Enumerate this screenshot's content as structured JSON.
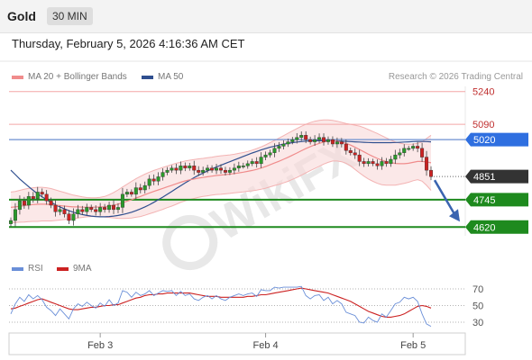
{
  "header": {
    "symbol": "Gold",
    "timeframe": "30 MIN",
    "datetime": "Thursday, February 5, 2026 4:16:36 AM CET"
  },
  "legend": {
    "ma20_label": "MA 20 + Bollinger Bands",
    "ma50_label": "MA 50",
    "credit": "Research © 2026 Trading Central",
    "rsi_label": "RSI",
    "rsi_ma_label": "9MA"
  },
  "watermark": "WikiFX",
  "colors": {
    "up": "#2a9a2a",
    "down": "#cc2222",
    "ma20": "#f08c8c",
    "ma50": "#2f4f8f",
    "level_red": "#f4a6a6",
    "level_blue": "#6d8fd0",
    "badge_blue": "#2f6fe0",
    "badge_green": "#1e8a1e",
    "badge_dark": "#333333",
    "arrow": "#3a64b0",
    "rsi": "#6a8fd8",
    "rsi_ma": "#cc2222"
  },
  "chart_data": [
    {
      "type": "candlestick",
      "xlabels": [
        "Feb 3",
        "Feb 4",
        "Feb 5"
      ],
      "ylim": [
        4580,
        5280
      ],
      "levels": [
        {
          "value": 5240,
          "label": "5240",
          "style": "resistance"
        },
        {
          "value": 5090,
          "label": "5090",
          "style": "resistance"
        },
        {
          "value": 5020,
          "label": "5020",
          "style": "pivot"
        },
        {
          "value": 4851,
          "label": "4851",
          "style": "last"
        },
        {
          "value": 4745,
          "label": "4745",
          "style": "support"
        },
        {
          "value": 4620,
          "label": "4620",
          "style": "support"
        }
      ],
      "close": [
        4650,
        4700,
        4740,
        4720,
        4760,
        4750,
        4780,
        4770,
        4740,
        4720,
        4690,
        4700,
        4680,
        4650,
        4680,
        4700,
        4690,
        4710,
        4700,
        4690,
        4710,
        4700,
        4720,
        4700,
        4710,
        4770,
        4780,
        4770,
        4800,
        4790,
        4810,
        4840,
        4830,
        4850,
        4870,
        4880,
        4890,
        4880,
        4900,
        4890,
        4900,
        4880,
        4870,
        4880,
        4890,
        4880,
        4890,
        4880,
        4870,
        4880,
        4890,
        4900,
        4900,
        4910,
        4920,
        4910,
        4940,
        4950,
        4960,
        4980,
        4990,
        5000,
        5010,
        5020,
        5030,
        5040,
        5020,
        5010,
        5020,
        5030,
        5010,
        5020,
        5000,
        5010,
        5000,
        4970,
        4960,
        4950,
        4920,
        4910,
        4920,
        4910,
        4900,
        4920,
        4910,
        4930,
        4950,
        4960,
        4980,
        4980,
        4990,
        4980,
        4940,
        4880,
        4851
      ],
      "ma20": [
        4710,
        4712,
        4715,
        4718,
        4721,
        4723,
        4724,
        4725,
        4724,
        4722,
        4720,
        4718,
        4716,
        4714,
        4712,
        4712,
        4711,
        4711,
        4711,
        4711,
        4712,
        4713,
        4716,
        4720,
        4725,
        4731,
        4738,
        4745,
        4753,
        4760,
        4768,
        4776,
        4783,
        4790,
        4797,
        4804,
        4811,
        4818,
        4825,
        4831,
        4836,
        4840,
        4844,
        4847,
        4850,
        4853,
        4856,
        4858,
        4860,
        4862,
        4865,
        4868,
        4871,
        4875,
        4879,
        4884,
        4890,
        4897,
        4905,
        4913,
        4921,
        4930,
        4939,
        4949,
        4959,
        4969,
        4979,
        4988,
        4996,
        5003,
        5009,
        5013,
        5015,
        5013,
        5009,
        5003,
        4995,
        4985,
        4975,
        4964,
        4953,
        4943,
        4934,
        4926,
        4920,
        4915,
        4911,
        4910,
        4910,
        4912,
        4916,
        4920,
        4920,
        4918,
        4914
      ],
      "bb_upper": [
        4780,
        4783,
        4788,
        4793,
        4797,
        4800,
        4802,
        4802,
        4800,
        4796,
        4790,
        4784,
        4778,
        4772,
        4766,
        4762,
        4758,
        4755,
        4754,
        4754,
        4756,
        4760,
        4768,
        4778,
        4790,
        4803,
        4816,
        4829,
        4841,
        4852,
        4862,
        4871,
        4879,
        4886,
        4893,
        4899,
        4906,
        4912,
        4917,
        4922,
        4926,
        4929,
        4932,
        4934,
        4937,
        4940,
        4943,
        4946,
        4948,
        4950,
        4953,
        4957,
        4961,
        4966,
        4972,
        4979,
        4987,
        4996,
        5006,
        5016,
        5027,
        5038,
        5049,
        5060,
        5071,
        5081,
        5090,
        5098,
        5104,
        5108,
        5110,
        5110,
        5108,
        5104,
        5099,
        5094,
        5090,
        5086,
        5082,
        5075,
        5066,
        5057,
        5048,
        5038,
        5028,
        5018,
        5010,
        5004,
        5000,
        4999,
        5000,
        5003,
        5010,
        5025,
        5040
      ],
      "bb_lower": [
        4640,
        4641,
        4642,
        4643,
        4645,
        4646,
        4646,
        4648,
        4648,
        4648,
        4650,
        4652,
        4654,
        4656,
        4658,
        4662,
        4664,
        4667,
        4668,
        4668,
        4668,
        4666,
        4664,
        4662,
        4660,
        4659,
        4660,
        4661,
        4665,
        4668,
        4674,
        4681,
        4687,
        4694,
        4701,
        4709,
        4716,
        4724,
        4733,
        4740,
        4746,
        4751,
        4756,
        4760,
        4763,
        4766,
        4769,
        4770,
        4772,
        4774,
        4777,
        4779,
        4781,
        4784,
        4786,
        4789,
        4793,
        4798,
        4804,
        4810,
        4815,
        4822,
        4829,
        4838,
        4847,
        4857,
        4868,
        4878,
        4888,
        4898,
        4908,
        4916,
        4922,
        4922,
        4919,
        4912,
        4900,
        4884,
        4868,
        4853,
        4840,
        4829,
        4820,
        4814,
        4812,
        4812,
        4812,
        4816,
        4820,
        4825,
        4832,
        4837,
        4830,
        4811,
        4788
      ],
      "ma50": [
        4880,
        4860,
        4840,
        4822,
        4805,
        4788,
        4772,
        4758,
        4745,
        4733,
        4722,
        4712,
        4703,
        4695,
        4688,
        4682,
        4677,
        4673,
        4670,
        4668,
        4667,
        4667,
        4668,
        4670,
        4673,
        4677,
        4682,
        4688,
        4695,
        4703,
        4712,
        4722,
        4733,
        4745,
        4757,
        4770,
        4783,
        4796,
        4809,
        4822,
        4834,
        4846,
        4857,
        4867,
        4877,
        4886,
        4895,
        4903,
        4911,
        4919,
        4927,
        4935,
        4943,
        4951,
        4959,
        4966,
        4973,
        4979,
        4985,
        4990,
        4995,
        4999,
        5003,
        5006,
        5009,
        5011,
        5013,
        5014,
        5015,
        5015,
        5015,
        5015,
        5015,
        5014,
        5013,
        5012,
        5011,
        5010,
        5009,
        5008,
        5007,
        5006,
        5006,
        5006,
        5006,
        5006,
        5007,
        5008,
        5009,
        5010,
        5011,
        5012,
        5012,
        5011,
        5010
      ]
    },
    {
      "type": "line",
      "series": [
        {
          "name": "RSI",
          "values": [
            40,
            52,
            60,
            55,
            63,
            58,
            62,
            57,
            48,
            44,
            38,
            46,
            40,
            34,
            46,
            52,
            49,
            54,
            50,
            47,
            53,
            49,
            57,
            50,
            53,
            68,
            66,
            60,
            66,
            62,
            64,
            68,
            62,
            65,
            68,
            67,
            68,
            62,
            67,
            62,
            64,
            58,
            56,
            60,
            62,
            58,
            62,
            58,
            56,
            60,
            62,
            64,
            62,
            64,
            65,
            61,
            69,
            68,
            68,
            72,
            71,
            72,
            72,
            72,
            72,
            73,
            62,
            58,
            62,
            63,
            56,
            60,
            52,
            56,
            52,
            42,
            40,
            38,
            30,
            29,
            36,
            32,
            30,
            40,
            36,
            44,
            52,
            54,
            60,
            58,
            60,
            55,
            40,
            28,
            25
          ]
        },
        {
          "name": "9MA",
          "values": [
            46,
            47,
            49,
            51,
            53,
            55,
            57,
            58,
            56,
            54,
            52,
            50,
            48,
            46,
            45,
            45,
            46,
            47,
            48,
            48,
            49,
            50,
            50,
            51,
            51,
            53,
            55,
            57,
            59,
            60,
            62,
            63,
            63,
            64,
            64,
            65,
            65,
            65,
            65,
            65,
            65,
            64,
            63,
            62,
            61,
            61,
            61,
            60,
            60,
            60,
            60,
            60,
            60,
            61,
            61,
            62,
            63,
            63,
            64,
            65,
            66,
            67,
            68,
            69,
            70,
            71,
            70,
            69,
            68,
            67,
            66,
            65,
            63,
            61,
            59,
            57,
            55,
            52,
            49,
            46,
            43,
            41,
            39,
            37,
            36,
            36,
            37,
            38,
            40,
            43,
            46,
            49,
            50,
            49,
            47
          ]
        }
      ],
      "yticks": [
        30,
        50,
        70
      ],
      "ylim": [
        0,
        100
      ]
    }
  ]
}
